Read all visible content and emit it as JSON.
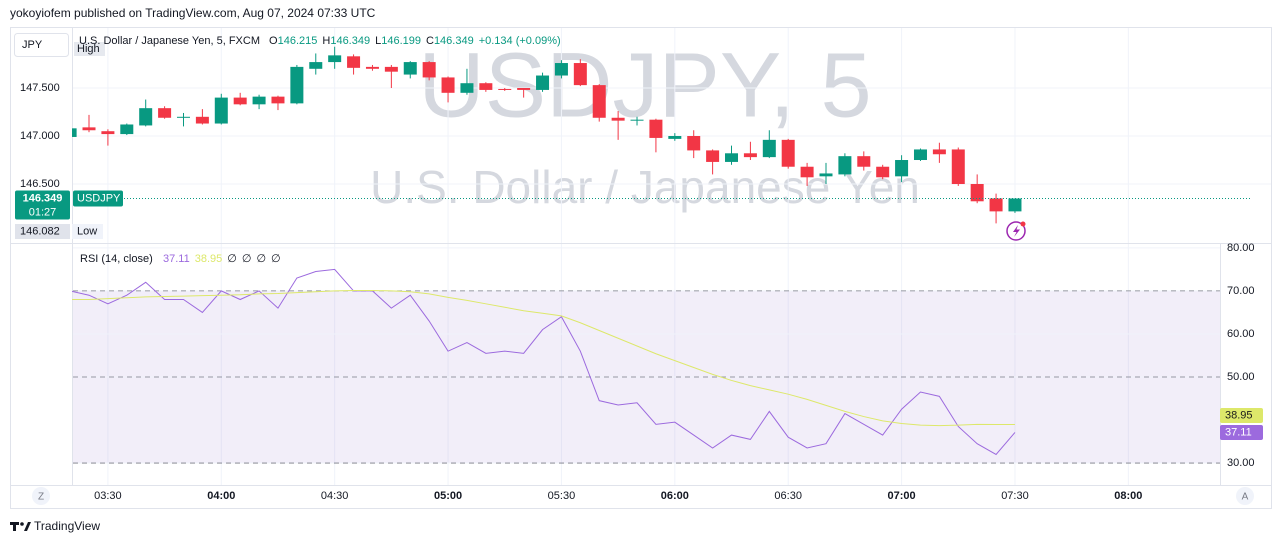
{
  "header": "yokoyiofem published on TradingView.com, Aug 07, 2024 07:33 UTC",
  "currency_button": "JPY",
  "legend": {
    "symbol": "U.S. Dollar / Japanese Yen, 5, FXCM",
    "ohlc": [
      {
        "letter": "O",
        "value": 146.215
      },
      {
        "letter": "H",
        "value": 146.349
      },
      {
        "letter": "L",
        "value": 146.199
      },
      {
        "letter": "C",
        "value": 146.349
      }
    ],
    "change": "+0.134 (+0.09%)"
  },
  "watermark": {
    "symbol": "USDJPY, 5",
    "description": "U.S. Dollar / Japanese Yen"
  },
  "price_labels": {
    "last": 146.349,
    "countdown": "01:27",
    "symbol": "USDJPY",
    "high": "High",
    "low_value": 146.082,
    "low": "Low"
  },
  "rsi_legend": {
    "placeholders": [
      "∅",
      "∅",
      "∅",
      "∅"
    ]
  },
  "buttons": {
    "left": "Z",
    "right": "A"
  },
  "footer": "TradingView",
  "chart_data": [
    {
      "type": "candlestick",
      "up_color": "#089981",
      "down_color": "#f23645",
      "open": [
        146.99,
        147.09,
        147.05,
        147.02,
        147.11,
        147.29,
        147.19,
        147.2,
        147.13,
        147.4,
        147.33,
        147.41,
        147.34,
        147.7,
        147.77,
        147.83,
        147.72,
        147.72,
        147.64,
        147.77,
        147.61,
        147.45,
        147.55,
        147.49,
        147.5,
        147.48,
        147.63,
        147.76,
        147.53,
        147.19,
        147.16,
        147.17,
        146.97,
        147.0,
        146.85,
        146.73,
        146.82,
        146.78,
        146.96,
        146.68,
        146.58,
        146.6,
        146.79,
        146.68,
        146.58,
        146.75,
        146.86,
        146.86,
        146.5,
        146.35,
        146.215
      ],
      "high": [
        147.1,
        147.22,
        147.07,
        147.13,
        147.38,
        147.31,
        147.24,
        147.28,
        147.44,
        147.45,
        147.43,
        147.42,
        147.74,
        147.86,
        147.93,
        147.85,
        147.74,
        147.74,
        147.78,
        147.78,
        147.62,
        147.7,
        147.56,
        147.5,
        147.5,
        147.66,
        147.79,
        147.8,
        147.54,
        147.26,
        147.2,
        147.18,
        147.03,
        147.06,
        146.86,
        146.9,
        146.94,
        147.06,
        146.97,
        146.72,
        146.72,
        146.82,
        146.84,
        146.7,
        146.8,
        146.87,
        146.93,
        146.88,
        146.6,
        146.4,
        146.349
      ],
      "low": [
        146.98,
        147.04,
        146.9,
        147.01,
        147.1,
        147.18,
        147.1,
        147.12,
        147.12,
        147.32,
        147.28,
        147.27,
        147.33,
        147.64,
        147.7,
        147.64,
        147.68,
        147.5,
        147.6,
        147.58,
        147.35,
        147.43,
        147.46,
        147.47,
        147.4,
        147.46,
        147.6,
        147.52,
        147.15,
        146.96,
        147.11,
        146.83,
        146.95,
        146.77,
        146.6,
        146.7,
        146.75,
        146.77,
        146.66,
        146.48,
        146.5,
        146.58,
        146.64,
        146.55,
        146.52,
        146.74,
        146.72,
        146.48,
        146.3,
        146.09,
        146.199
      ],
      "close": [
        147.08,
        147.06,
        147.02,
        147.12,
        147.29,
        147.19,
        147.2,
        147.13,
        147.4,
        147.33,
        147.41,
        147.34,
        147.72,
        147.77,
        147.84,
        147.71,
        147.7,
        147.67,
        147.77,
        147.61,
        147.45,
        147.55,
        147.48,
        147.48,
        147.48,
        147.63,
        147.76,
        147.53,
        147.19,
        147.16,
        147.17,
        146.98,
        147.0,
        146.85,
        146.73,
        146.82,
        146.78,
        146.96,
        146.68,
        146.57,
        146.61,
        146.79,
        146.68,
        146.57,
        146.75,
        146.86,
        146.81,
        146.5,
        146.32,
        146.215,
        146.349
      ],
      "xlim": [
        0.1,
        60.85
      ],
      "ylim": [
        145.896,
        148.125
      ],
      "yticks": [
        {
          "value": 146.5,
          "label": "146.500"
        },
        {
          "value": 147,
          "label": "147.000"
        },
        {
          "value": 147.5,
          "label": "147.500"
        }
      ],
      "grid": true
    },
    {
      "type": "line",
      "title": "RSI (14, close)",
      "series": [
        {
          "color": "#9c6ade",
          "values": [
            70,
            69,
            67,
            69,
            72,
            68,
            68,
            65,
            70,
            68,
            70,
            66,
            73,
            74.5,
            75,
            70,
            70,
            66,
            69,
            63,
            56,
            58,
            55.5,
            56,
            55.5,
            61,
            64,
            56,
            44.5,
            43.5,
            44,
            39,
            39.5,
            36.5,
            33.5,
            36.5,
            35.5,
            42,
            36,
            33.5,
            34.5,
            41.5,
            39,
            36.5,
            42.5,
            46.5,
            45.5,
            38.5,
            34.5,
            32,
            37.11
          ]
        },
        {
          "color": "#dde86a",
          "values": [
            68,
            68,
            68.2,
            68.4,
            68.6,
            68.7,
            68.8,
            68.9,
            69,
            69.1,
            69.3,
            69.4,
            69.6,
            69.8,
            70,
            70.1,
            70.1,
            70,
            69.8,
            69.3,
            68.5,
            67.8,
            67,
            66.2,
            65.4,
            64.8,
            64.2,
            62.6,
            60.8,
            59,
            57.2,
            55.4,
            53.8,
            52.2,
            50.6,
            49.2,
            48,
            47,
            46,
            44.8,
            43.4,
            42,
            40.8,
            39.8,
            39.2,
            38.8,
            38.7,
            38.8,
            39,
            38.95,
            38.95
          ]
        }
      ],
      "band": [
        30,
        70
      ],
      "levels": [
        70,
        50,
        30
      ],
      "xlim": [
        0.1,
        60.85
      ],
      "xticks": [
        {
          "value": 2,
          "label": "03:30"
        },
        {
          "value": 8,
          "label": "04:00"
        },
        {
          "value": 14,
          "label": "04:30"
        },
        {
          "value": 20,
          "label": "05:00"
        },
        {
          "value": 26,
          "label": "05:30"
        },
        {
          "value": 32,
          "label": "06:00"
        },
        {
          "value": 38,
          "label": "06:30"
        },
        {
          "value": 44,
          "label": "07:00"
        },
        {
          "value": 50,
          "label": "07:30"
        },
        {
          "value": 56,
          "label": "08:00"
        }
      ],
      "ylim": [
        24.9,
        80.9
      ],
      "yticks": [
        {
          "value": 30,
          "label": "30.00"
        },
        {
          "value": 50,
          "label": "50.00"
        },
        {
          "value": 60,
          "label": "60.00"
        },
        {
          "value": 70,
          "label": "70.00"
        },
        {
          "value": 80,
          "label": "80.00"
        }
      ],
      "grid": true
    }
  ]
}
